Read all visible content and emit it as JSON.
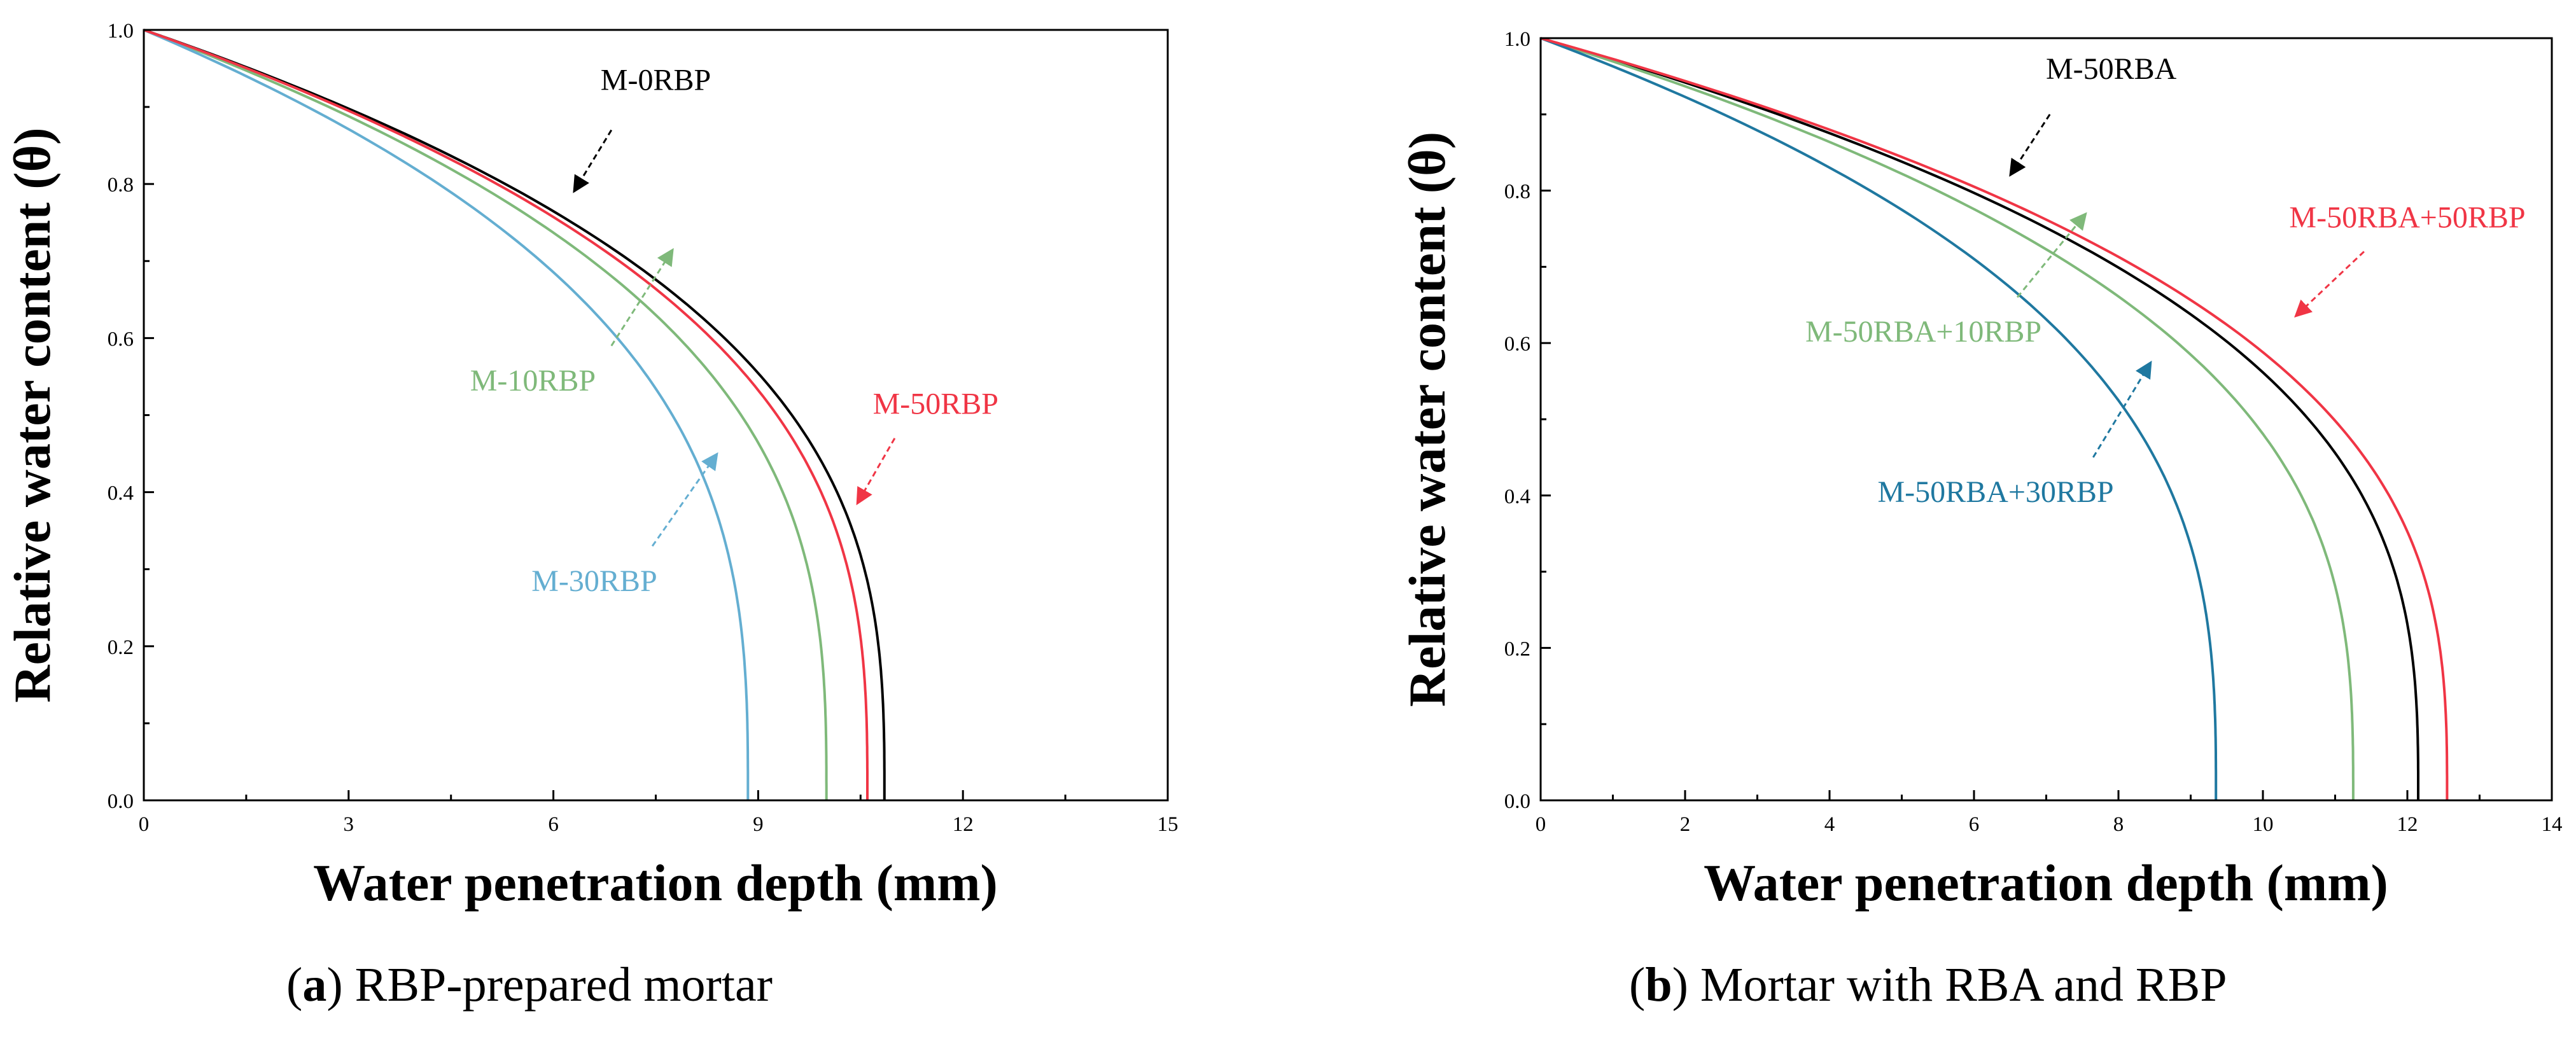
{
  "captions": [
    {
      "letter": "a",
      "text": "RBP-prepared mortar"
    },
    {
      "letter": "b",
      "text": "Mortar with RBA and RBP"
    }
  ],
  "chart_data": [
    {
      "type": "line",
      "id": "a",
      "xlabel": "Water penetration depth (mm)",
      "ylabel": "Relative water content (θ)",
      "xlim": [
        0,
        15
      ],
      "ylim": [
        0,
        1.0
      ],
      "xticks": [
        0,
        3,
        6,
        9,
        12,
        15
      ],
      "xtick_labels": [
        "0",
        "3",
        "6",
        "9",
        "12",
        "15"
      ],
      "yticks": [
        0,
        0.2,
        0.4,
        0.6,
        0.8,
        1.0
      ],
      "ytick_labels": [
        "0.0",
        "0.2",
        "0.4",
        "0.6",
        "0.8",
        "1.0"
      ],
      "series": [
        {
          "name": "M-0RBP",
          "color": "#000000",
          "x_end": 10.85,
          "label_xy": [
            7.5,
            0.935
          ],
          "arrow_from": [
            6.85,
            0.87
          ],
          "arrow_to": [
            6.3,
            0.79
          ]
        },
        {
          "name": "M-10RBP",
          "color": "#7fb97a",
          "x_end": 10.0,
          "label_xy": [
            5.7,
            0.545
          ],
          "arrow_from": [
            6.85,
            0.59
          ],
          "arrow_to": [
            7.75,
            0.715
          ]
        },
        {
          "name": "M-30RBP",
          "color": "#64aed1",
          "x_end": 8.85,
          "label_xy": [
            6.6,
            0.285
          ],
          "arrow_from": [
            7.45,
            0.33
          ],
          "arrow_to": [
            8.4,
            0.45
          ]
        },
        {
          "name": "M-50RBP",
          "color": "#f03545",
          "x_end": 10.6,
          "label_xy": [
            11.6,
            0.515
          ],
          "arrow_from": [
            11.0,
            0.47
          ],
          "arrow_to": [
            10.45,
            0.385
          ]
        }
      ]
    },
    {
      "type": "line",
      "id": "b",
      "xlabel": "Water penetration depth (mm)",
      "ylabel": "Relative water content (θ)",
      "xlim": [
        0,
        14
      ],
      "ylim": [
        0,
        1.0
      ],
      "xticks": [
        0,
        2,
        4,
        6,
        8,
        10,
        12,
        14
      ],
      "xtick_labels": [
        "0",
        "2",
        "4",
        "6",
        "8",
        "10",
        "12",
        "14"
      ],
      "yticks": [
        0,
        0.2,
        0.4,
        0.6,
        0.8,
        1.0
      ],
      "ytick_labels": [
        "0.0",
        "0.2",
        "0.4",
        "0.6",
        "0.8",
        "1.0"
      ],
      "series": [
        {
          "name": "M-50RBA",
          "color": "#000000",
          "x_end": 12.15,
          "label_xy": [
            7.9,
            0.96
          ],
          "arrow_from": [
            7.05,
            0.9
          ],
          "arrow_to": [
            6.5,
            0.82
          ]
        },
        {
          "name": "M-50RBA+10RBP",
          "color": "#7fb97a",
          "x_end": 11.25,
          "label_xy": [
            5.3,
            0.615
          ],
          "arrow_from": [
            6.6,
            0.66
          ],
          "arrow_to": [
            7.55,
            0.77
          ]
        },
        {
          "name": "M-50RBA+30RBP",
          "color": "#1f78a0",
          "x_end": 9.35,
          "label_xy": [
            6.3,
            0.405
          ],
          "arrow_from": [
            7.65,
            0.45
          ],
          "arrow_to": [
            8.45,
            0.575
          ]
        },
        {
          "name": "M-50RBA+50RBP",
          "color": "#f03545",
          "x_end": 12.55,
          "label_xy": [
            12.0,
            0.765
          ],
          "arrow_from": [
            11.4,
            0.72
          ],
          "arrow_to": [
            10.45,
            0.635
          ]
        }
      ]
    }
  ]
}
